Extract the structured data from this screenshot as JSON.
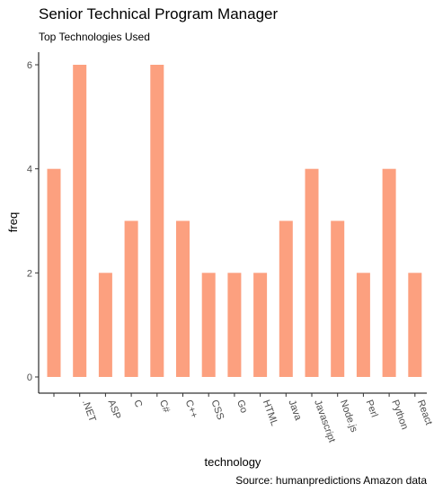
{
  "chart_data": {
    "type": "bar",
    "title": "Senior Technical Program Manager",
    "subtitle": "Top Technologies Used",
    "xlabel": "technology",
    "ylabel": "freq",
    "caption": "Source: humanpredictions Amazon data",
    "categories": [
      "",
      ".NET",
      "ASP",
      "C",
      "C#",
      "C++",
      "CSS",
      "Go",
      "HTML",
      "Java",
      "Javascript",
      "Node.js",
      "Perl",
      "Python",
      "React"
    ],
    "values": [
      4,
      6,
      2,
      3,
      6,
      3,
      2,
      2,
      2,
      3,
      4,
      3,
      2,
      4,
      2
    ],
    "ylim": [
      0,
      6
    ],
    "yticks": [
      0,
      2,
      4,
      6
    ],
    "grid": false,
    "legend": "none",
    "bar_color": "#FCA07F"
  }
}
